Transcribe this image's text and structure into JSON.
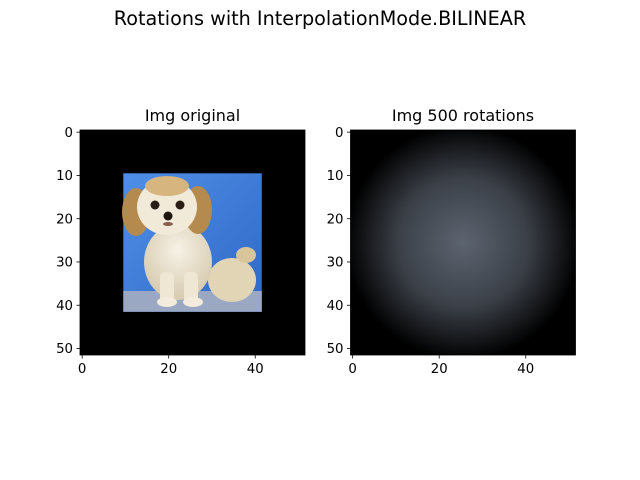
{
  "figure": {
    "suptitle": "Rotations with InterpolationMode.BILINEAR"
  },
  "chart_data": [
    {
      "type": "image",
      "title": "Img original",
      "xlim": [
        -0.5,
        51.5
      ],
      "ylim": [
        51.5,
        -0.5
      ],
      "xticks": [
        0,
        20,
        40
      ],
      "yticks": [
        0,
        10,
        20,
        30,
        40,
        50
      ],
      "background_color": "#000000",
      "content": {
        "kind": "photo-puppy",
        "extent": [
          9.5,
          41.5,
          9.5,
          41.5
        ],
        "sky_color": "#3f7fd9",
        "dog_color": "#ece4d2",
        "ear_color": "#b48a4e",
        "floor_color": "#9aa8c4"
      }
    },
    {
      "type": "image",
      "title": "Img 500 rotations",
      "xlim": [
        -0.5,
        51.5
      ],
      "ylim": [
        51.5,
        -0.5
      ],
      "xticks": [
        0,
        20,
        40
      ],
      "yticks": [
        0,
        10,
        20,
        30,
        40,
        50
      ],
      "background_color": "#000000",
      "content": {
        "kind": "radial-blur",
        "center": [
          25.5,
          25.5
        ],
        "radius": 27,
        "center_color": "#5c6470",
        "mid_color": "#3b4048",
        "edge_color": "#000000"
      }
    }
  ]
}
